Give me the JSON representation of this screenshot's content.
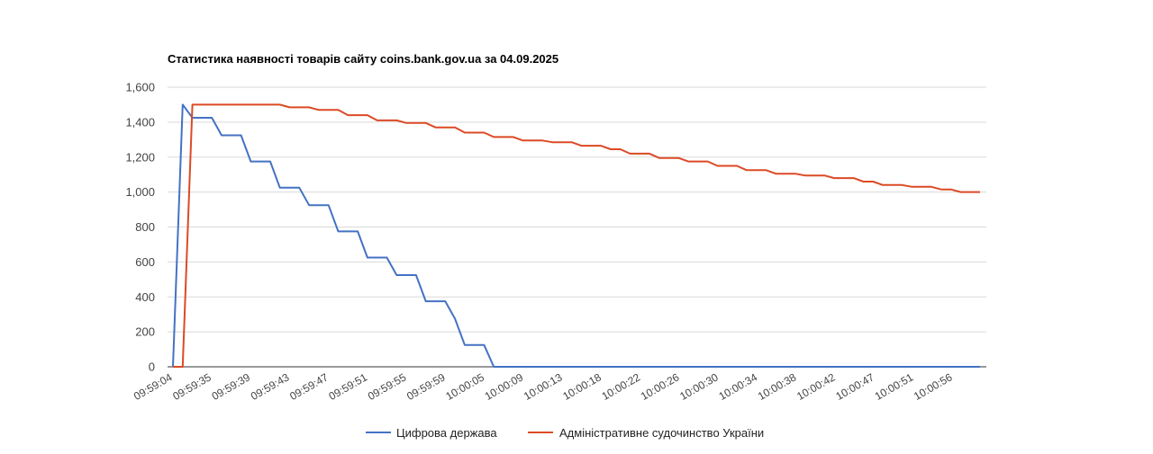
{
  "chart_data": {
    "type": "line",
    "title": "Статистика наявності товарів сайту coins.bank.gov.ua за 04.09.2025",
    "xlabel": "",
    "ylabel": "",
    "ylim": [
      0,
      1600
    ],
    "yticks": [
      0,
      200,
      400,
      600,
      800,
      1000,
      1200,
      1400,
      1600
    ],
    "ytick_labels": [
      "0",
      "200",
      "400",
      "600",
      "800",
      "1,000",
      "1,200",
      "1,400",
      "1,600"
    ],
    "xtick_labels": [
      "09:59:04",
      "09:59:35",
      "09:59:39",
      "09:59:43",
      "09:59:47",
      "09:59:51",
      "09:59:55",
      "09:59:59",
      "10:00:05",
      "10:00:09",
      "10:00:13",
      "10:00:18",
      "10:00:22",
      "10:00:26",
      "10:00:30",
      "10:00:34",
      "10:00:38",
      "10:00:42",
      "10:00:47",
      "10:00:51",
      "10:00:56"
    ],
    "grid": true,
    "legend": "bottom",
    "series": [
      {
        "name": "Цифрова держава",
        "color": "#4472c4",
        "values": [
          0,
          1500,
          1425,
          1425,
          1425,
          1325,
          1325,
          1325,
          1175,
          1175,
          1175,
          1025,
          1025,
          1025,
          925,
          925,
          925,
          775,
          775,
          775,
          625,
          625,
          625,
          525,
          525,
          525,
          375,
          375,
          375,
          275,
          125,
          125,
          125,
          0,
          0,
          0,
          0,
          0,
          0,
          0,
          0,
          0,
          0,
          0,
          0,
          0,
          0,
          0,
          0,
          0,
          0,
          0,
          0,
          0,
          0,
          0,
          0,
          0,
          0,
          0,
          0,
          0,
          0,
          0,
          0,
          0,
          0,
          0,
          0,
          0,
          0,
          0,
          0,
          0,
          0,
          0,
          0,
          0,
          0,
          0,
          0,
          0,
          0,
          0
        ]
      },
      {
        "name": "Адміністративне судочинство України",
        "color": "#dc4a25",
        "values": [
          0,
          0,
          1500,
          1500,
          1500,
          1500,
          1500,
          1500,
          1500,
          1500,
          1500,
          1500,
          1485,
          1485,
          1485,
          1470,
          1470,
          1470,
          1440,
          1440,
          1440,
          1410,
          1410,
          1410,
          1395,
          1395,
          1395,
          1370,
          1370,
          1370,
          1340,
          1340,
          1340,
          1315,
          1315,
          1315,
          1295,
          1295,
          1295,
          1285,
          1285,
          1285,
          1265,
          1265,
          1265,
          1245,
          1245,
          1220,
          1220,
          1220,
          1195,
          1195,
          1195,
          1175,
          1175,
          1175,
          1150,
          1150,
          1150,
          1125,
          1125,
          1125,
          1105,
          1105,
          1105,
          1095,
          1095,
          1095,
          1080,
          1080,
          1080,
          1060,
          1060,
          1040,
          1040,
          1040,
          1030,
          1030,
          1030,
          1015,
          1015,
          1000,
          1000,
          1000
        ]
      }
    ]
  }
}
